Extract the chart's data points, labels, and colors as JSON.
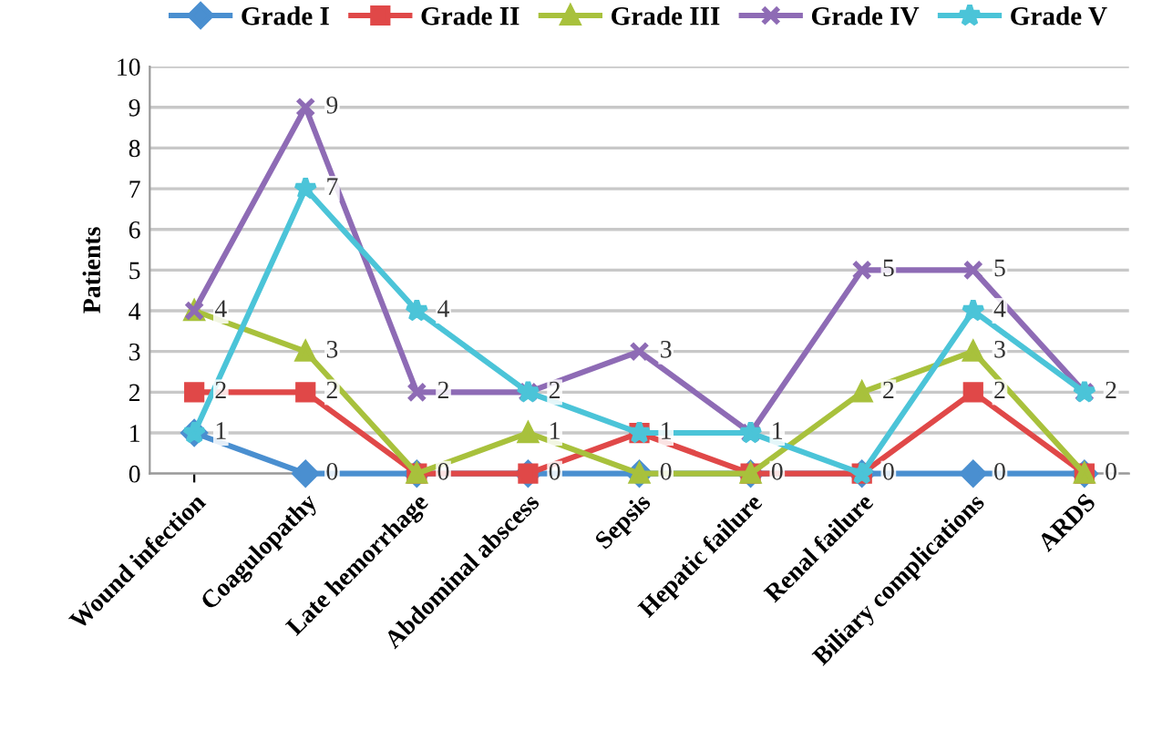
{
  "chart_data": {
    "type": "line",
    "ylabel": "Patients",
    "categories": [
      "Wound infection",
      "Coagulopathy",
      "Late hemorrhage",
      "Abdominal abscess",
      "Sepsis",
      "Hepatic failure",
      "Renal failure",
      "Biliary complications",
      "ARDS"
    ],
    "series": [
      {
        "name": "Grade I",
        "color": "#4a8fd0",
        "marker": "diamond",
        "values": [
          1,
          0,
          0,
          0,
          0,
          0,
          0,
          0,
          0
        ],
        "value_labels": [
          "1",
          "0",
          null,
          null,
          null,
          null,
          null,
          "0",
          null
        ]
      },
      {
        "name": "Grade II",
        "color": "#e04848",
        "marker": "square",
        "values": [
          2,
          2,
          0,
          0,
          1,
          0,
          0,
          2,
          0
        ],
        "value_labels": [
          "2",
          "2",
          null,
          "0",
          "1",
          "0",
          null,
          "2",
          "0"
        ]
      },
      {
        "name": "Grade III",
        "color": "#a8c13c",
        "marker": "triangle",
        "values": [
          4,
          3,
          0,
          1,
          0,
          0,
          2,
          3,
          0
        ],
        "value_labels": [
          null,
          "3",
          "0",
          "1",
          "0",
          null,
          "2",
          "3",
          null
        ]
      },
      {
        "name": "Grade IV",
        "color": "#8e6bb5",
        "marker": "cross",
        "values": [
          4,
          9,
          2,
          2,
          3,
          1,
          5,
          5,
          2
        ],
        "value_labels": [
          "4",
          "9",
          "2",
          "2",
          "3",
          null,
          "5",
          "5",
          null
        ]
      },
      {
        "name": "Grade V",
        "color": "#4bc4d8",
        "marker": "star",
        "values": [
          1,
          7,
          4,
          2,
          1,
          1,
          0,
          4,
          2
        ],
        "value_labels": [
          null,
          "7",
          "4",
          null,
          null,
          "1",
          "0",
          "4",
          "2"
        ]
      }
    ],
    "ylim": [
      0,
      10
    ],
    "yticks": [
      0,
      1,
      2,
      3,
      4,
      5,
      6,
      7,
      8,
      9,
      10
    ],
    "grid": "y",
    "legend": "top"
  }
}
